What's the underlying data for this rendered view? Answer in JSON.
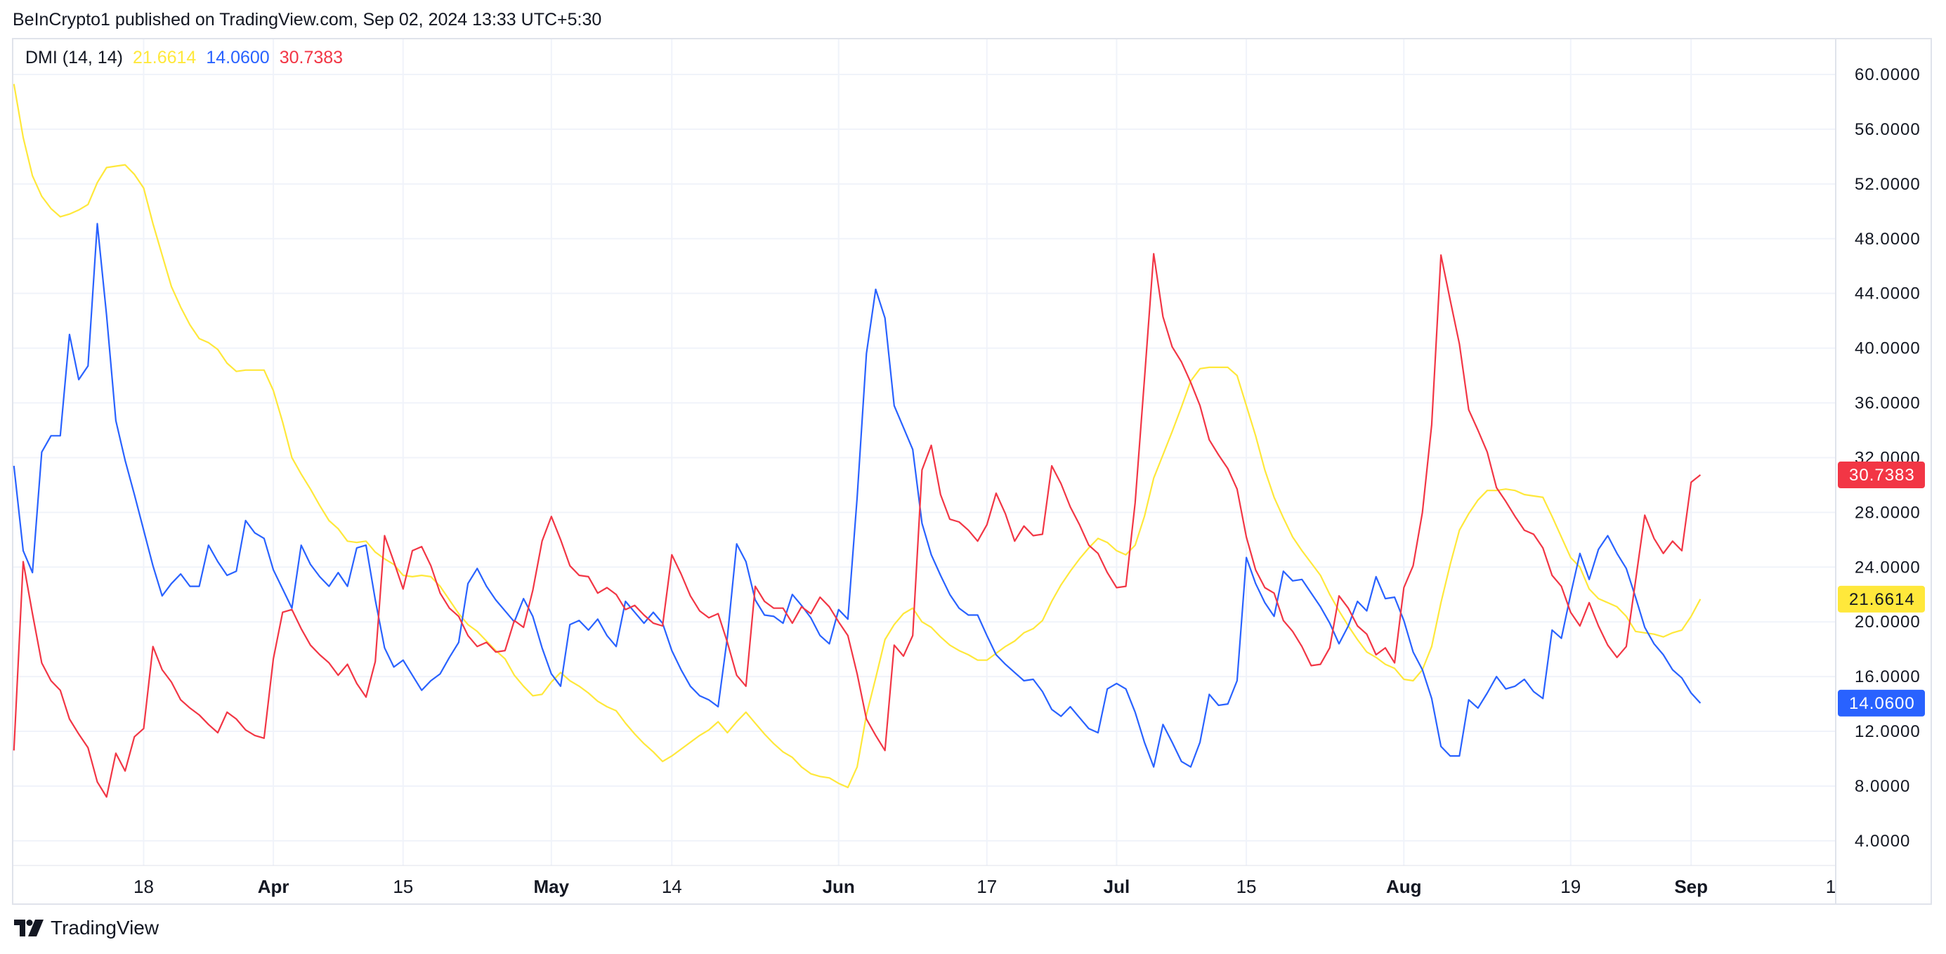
{
  "header": {
    "publish_line": "BeInCrypto1 published on TradingView.com, Sep 02, 2024 13:33 UTC+5:30"
  },
  "legend": {
    "indicator": "DMI (14, 14)",
    "values": [
      "21.6614",
      "14.0600",
      "30.7383"
    ]
  },
  "footer": {
    "brand": "TradingView"
  },
  "chart_data": {
    "type": "line",
    "title": "DMI (14, 14)",
    "ylim": [
      4,
      60
    ],
    "yticks": [
      "60.0000",
      "56.0000",
      "52.0000",
      "48.0000",
      "44.0000",
      "40.0000",
      "36.0000",
      "32.0000",
      "28.0000",
      "24.0000",
      "20.0000",
      "16.0000",
      "12.0000",
      "8.0000",
      "4.0000"
    ],
    "xticks": [
      {
        "label": "18",
        "date": "2024-03-18",
        "bold": false
      },
      {
        "label": "Apr",
        "date": "2024-04-01",
        "bold": true
      },
      {
        "label": "15",
        "date": "2024-04-15",
        "bold": false
      },
      {
        "label": "May",
        "date": "2024-05-01",
        "bold": true
      },
      {
        "label": "14",
        "date": "2024-05-14",
        "bold": false
      },
      {
        "label": "Jun",
        "date": "2024-06-01",
        "bold": true
      },
      {
        "label": "17",
        "date": "2024-06-17",
        "bold": false
      },
      {
        "label": "Jul",
        "date": "2024-07-01",
        "bold": true
      },
      {
        "label": "15",
        "date": "2024-07-15",
        "bold": false
      },
      {
        "label": "Aug",
        "date": "2024-08-01",
        "bold": true
      },
      {
        "label": "19",
        "date": "2024-08-19",
        "bold": false
      },
      {
        "label": "Sep",
        "date": "2024-09-01",
        "bold": true
      },
      {
        "label": "1",
        "date": null,
        "bold": false
      }
    ],
    "grid": true,
    "legend_placement": "top-left",
    "x": [
      "2024-03-04",
      "2024-03-05",
      "2024-03-06",
      "2024-03-07",
      "2024-03-08",
      "2024-03-09",
      "2024-03-10",
      "2024-03-11",
      "2024-03-12",
      "2024-03-13",
      "2024-03-14",
      "2024-03-15",
      "2024-03-16",
      "2024-03-17",
      "2024-03-18",
      "2024-03-19",
      "2024-03-20",
      "2024-03-21",
      "2024-03-22",
      "2024-03-23",
      "2024-03-24",
      "2024-03-25",
      "2024-03-26",
      "2024-03-27",
      "2024-03-28",
      "2024-03-29",
      "2024-03-30",
      "2024-03-31",
      "2024-04-01",
      "2024-04-02",
      "2024-04-03",
      "2024-04-04",
      "2024-04-05",
      "2024-04-06",
      "2024-04-07",
      "2024-04-08",
      "2024-04-09",
      "2024-04-10",
      "2024-04-11",
      "2024-04-12",
      "2024-04-13",
      "2024-04-14",
      "2024-04-15",
      "2024-04-16",
      "2024-04-17",
      "2024-04-18",
      "2024-04-19",
      "2024-04-20",
      "2024-04-21",
      "2024-04-22",
      "2024-04-23",
      "2024-04-24",
      "2024-04-25",
      "2024-04-26",
      "2024-04-27",
      "2024-04-28",
      "2024-04-29",
      "2024-04-30",
      "2024-05-01",
      "2024-05-02",
      "2024-05-03",
      "2024-05-04",
      "2024-05-05",
      "2024-05-06",
      "2024-05-07",
      "2024-05-08",
      "2024-05-09",
      "2024-05-10",
      "2024-05-11",
      "2024-05-12",
      "2024-05-13",
      "2024-05-14",
      "2024-05-15",
      "2024-05-16",
      "2024-05-17",
      "2024-05-18",
      "2024-05-19",
      "2024-05-20",
      "2024-05-21",
      "2024-05-22",
      "2024-05-23",
      "2024-05-24",
      "2024-05-25",
      "2024-05-26",
      "2024-05-27",
      "2024-05-28",
      "2024-05-29",
      "2024-05-30",
      "2024-05-31",
      "2024-06-01",
      "2024-06-02",
      "2024-06-03",
      "2024-06-04",
      "2024-06-05",
      "2024-06-06",
      "2024-06-07",
      "2024-06-08",
      "2024-06-09",
      "2024-06-10",
      "2024-06-11",
      "2024-06-12",
      "2024-06-13",
      "2024-06-14",
      "2024-06-15",
      "2024-06-16",
      "2024-06-17",
      "2024-06-18",
      "2024-06-19",
      "2024-06-20",
      "2024-06-21",
      "2024-06-22",
      "2024-06-23",
      "2024-06-24",
      "2024-06-25",
      "2024-06-26",
      "2024-06-27",
      "2024-06-28",
      "2024-06-29",
      "2024-06-30",
      "2024-07-01",
      "2024-07-02",
      "2024-07-03",
      "2024-07-04",
      "2024-07-05",
      "2024-07-06",
      "2024-07-07",
      "2024-07-08",
      "2024-07-09",
      "2024-07-10",
      "2024-07-11",
      "2024-07-12",
      "2024-07-13",
      "2024-07-14",
      "2024-07-15",
      "2024-07-16",
      "2024-07-17",
      "2024-07-18",
      "2024-07-19",
      "2024-07-20",
      "2024-07-21",
      "2024-07-22",
      "2024-07-23",
      "2024-07-24",
      "2024-07-25",
      "2024-07-26",
      "2024-07-27",
      "2024-07-28",
      "2024-07-29",
      "2024-07-30",
      "2024-07-31",
      "2024-08-01",
      "2024-08-02",
      "2024-08-03",
      "2024-08-04",
      "2024-08-05",
      "2024-08-06",
      "2024-08-07",
      "2024-08-08",
      "2024-08-09",
      "2024-08-10",
      "2024-08-11",
      "2024-08-12",
      "2024-08-13",
      "2024-08-14",
      "2024-08-15",
      "2024-08-16",
      "2024-08-17",
      "2024-08-18",
      "2024-08-19",
      "2024-08-20",
      "2024-08-21",
      "2024-08-22",
      "2024-08-23",
      "2024-08-24",
      "2024-08-25",
      "2024-08-26",
      "2024-08-27",
      "2024-08-28",
      "2024-08-29",
      "2024-08-30",
      "2024-08-31",
      "2024-09-01",
      "2024-09-02"
    ],
    "series": [
      {
        "color": "#ffe83b",
        "label_text_color": "#131722",
        "last_label": "21.6614",
        "values": [
          59.3,
          55.4,
          52.6,
          51.1,
          50.2,
          49.6,
          49.8,
          50.1,
          50.5,
          52.1,
          53.2,
          53.3,
          53.4,
          52.7,
          51.7,
          49.1,
          46.8,
          44.5,
          43.0,
          41.7,
          40.7,
          40.4,
          39.9,
          38.9,
          38.3,
          38.4,
          38.4,
          38.4,
          36.9,
          34.6,
          32.0,
          30.8,
          29.7,
          28.5,
          27.4,
          26.8,
          25.9,
          25.8,
          25.9,
          25.1,
          24.6,
          24.2,
          23.4,
          23.3,
          23.4,
          23.3,
          22.6,
          21.6,
          20.6,
          19.8,
          19.3,
          18.6,
          17.9,
          17.3,
          16.1,
          15.3,
          14.6,
          14.7,
          15.6,
          16.3,
          15.7,
          15.3,
          14.8,
          14.2,
          13.8,
          13.5,
          12.6,
          11.8,
          11.1,
          10.5,
          9.8,
          10.2,
          10.7,
          11.2,
          11.7,
          12.1,
          12.7,
          11.9,
          12.7,
          13.4,
          12.6,
          11.8,
          11.1,
          10.5,
          10.1,
          9.4,
          8.9,
          8.7,
          8.6,
          8.2,
          7.9,
          9.4,
          13.2,
          15.9,
          18.7,
          19.8,
          20.6,
          21.0,
          20.0,
          19.6,
          18.9,
          18.3,
          17.9,
          17.6,
          17.2,
          17.2,
          17.7,
          18.2,
          18.6,
          19.2,
          19.5,
          20.1,
          21.5,
          22.7,
          23.7,
          24.6,
          25.4,
          26.1,
          25.8,
          25.2,
          24.9,
          25.6,
          27.7,
          30.5,
          32.2,
          33.9,
          35.7,
          37.6,
          38.5,
          38.6,
          38.6,
          38.6,
          38.0,
          35.8,
          33.6,
          31.1,
          29.1,
          27.6,
          26.2,
          25.2,
          24.3,
          23.4,
          22.0,
          20.8,
          19.7,
          18.7,
          17.8,
          17.4,
          16.9,
          16.6,
          15.8,
          15.7,
          16.5,
          18.2,
          21.4,
          24.2,
          26.7,
          27.9,
          28.9,
          29.6,
          29.6,
          29.7,
          29.6,
          29.3,
          29.2,
          29.1,
          27.7,
          26.2,
          24.7,
          24.0,
          22.4,
          21.7,
          21.4,
          21.1,
          20.4,
          19.3,
          19.2,
          19.1,
          18.9,
          19.2,
          19.4,
          20.4,
          21.6614
        ]
      },
      {
        "color": "#2962ff",
        "label_text_color": "#ffffff",
        "last_label": "14.0600",
        "values": [
          31.4,
          25.2,
          23.6,
          32.4,
          33.6,
          33.6,
          41.0,
          37.7,
          38.7,
          49.1,
          42.4,
          34.7,
          31.8,
          29.3,
          26.7,
          24.1,
          21.9,
          22.8,
          23.5,
          22.6,
          22.6,
          25.6,
          24.4,
          23.4,
          23.7,
          27.4,
          26.5,
          26.1,
          23.8,
          22.4,
          21.0,
          25.6,
          24.2,
          23.3,
          22.6,
          23.6,
          22.6,
          25.4,
          25.6,
          21.6,
          18.1,
          16.7,
          17.2,
          16.1,
          15.0,
          15.7,
          16.2,
          17.4,
          18.5,
          22.8,
          23.9,
          22.6,
          21.6,
          20.8,
          20.0,
          21.7,
          20.4,
          18.1,
          16.2,
          15.3,
          19.8,
          20.1,
          19.4,
          20.2,
          19.0,
          18.2,
          21.5,
          20.7,
          19.9,
          20.7,
          19.9,
          17.9,
          16.5,
          15.3,
          14.6,
          14.3,
          13.8,
          18.9,
          25.7,
          24.4,
          21.6,
          20.5,
          20.4,
          19.9,
          22.0,
          21.2,
          20.3,
          19.0,
          18.4,
          20.9,
          20.2,
          29.1,
          39.6,
          44.3,
          42.2,
          35.8,
          34.2,
          32.6,
          27.2,
          24.9,
          23.4,
          22.0,
          21.0,
          20.5,
          20.5,
          19.0,
          17.6,
          16.9,
          16.3,
          15.7,
          15.8,
          14.9,
          13.6,
          13.1,
          13.8,
          13.0,
          12.2,
          11.9,
          15.1,
          15.5,
          15.1,
          13.4,
          11.2,
          9.4,
          12.5,
          11.2,
          9.8,
          9.4,
          11.2,
          14.7,
          13.9,
          14.0,
          15.7,
          24.7,
          22.8,
          21.4,
          20.4,
          23.7,
          23.0,
          23.1,
          22.1,
          21.1,
          19.9,
          18.4,
          19.7,
          21.5,
          20.8,
          23.3,
          21.7,
          21.8,
          20.1,
          17.8,
          16.5,
          14.4,
          10.9,
          10.2,
          10.2,
          14.3,
          13.7,
          14.8,
          16.0,
          15.1,
          15.3,
          15.8,
          14.9,
          14.4,
          19.4,
          18.8,
          22.0,
          25.0,
          23.1,
          25.3,
          26.3,
          25.0,
          23.9,
          21.8,
          19.6,
          18.4,
          17.6,
          16.5,
          15.9,
          14.8,
          14.06
        ]
      },
      {
        "color": "#f23645",
        "label_text_color": "#ffffff",
        "last_label": "30.7383",
        "values": [
          10.6,
          24.4,
          20.6,
          17.0,
          15.7,
          15.0,
          12.9,
          11.8,
          10.8,
          8.3,
          7.2,
          10.4,
          9.1,
          11.6,
          12.2,
          18.2,
          16.5,
          15.6,
          14.3,
          13.7,
          13.2,
          12.5,
          11.9,
          13.4,
          12.9,
          12.1,
          11.7,
          11.5,
          17.3,
          20.7,
          20.9,
          19.5,
          18.3,
          17.6,
          17.0,
          16.1,
          16.9,
          15.5,
          14.5,
          17.1,
          26.3,
          24.4,
          22.4,
          25.2,
          25.5,
          24.1,
          22.1,
          21.0,
          20.4,
          19.0,
          18.2,
          18.5,
          17.8,
          17.9,
          20.1,
          19.6,
          22.3,
          25.9,
          27.7,
          26.0,
          24.1,
          23.4,
          23.3,
          22.1,
          22.5,
          22.0,
          20.9,
          21.2,
          20.5,
          19.9,
          19.7,
          24.9,
          23.5,
          21.9,
          20.8,
          20.3,
          20.6,
          18.5,
          16.1,
          15.3,
          22.6,
          21.5,
          21.0,
          21.0,
          19.9,
          21.1,
          20.6,
          21.8,
          21.1,
          20.0,
          19.0,
          16.2,
          12.9,
          11.7,
          10.6,
          18.3,
          17.5,
          19.0,
          31.1,
          32.9,
          29.3,
          27.5,
          27.3,
          26.7,
          25.9,
          27.1,
          29.4,
          27.9,
          25.9,
          27.0,
          26.3,
          26.4,
          31.4,
          30.1,
          28.4,
          27.1,
          25.6,
          25.0,
          23.6,
          22.5,
          22.6,
          28.7,
          37.7,
          46.9,
          42.3,
          40.1,
          39.0,
          37.5,
          35.8,
          33.3,
          32.2,
          31.2,
          29.7,
          26.2,
          23.8,
          22.5,
          22.1,
          20.1,
          19.3,
          18.2,
          16.8,
          16.9,
          18.1,
          21.9,
          21.0,
          19.7,
          19.1,
          17.6,
          18.1,
          17.0,
          22.5,
          24.1,
          28.0,
          34.4,
          46.8,
          43.5,
          40.3,
          35.5,
          34.0,
          32.4,
          29.8,
          28.8,
          27.7,
          26.7,
          26.4,
          25.4,
          23.4,
          22.6,
          20.7,
          19.7,
          21.4,
          19.7,
          18.3,
          17.4,
          18.2,
          23.0,
          27.8,
          26.1,
          25.0,
          25.9,
          25.2,
          30.2,
          30.7383
        ]
      }
    ]
  }
}
